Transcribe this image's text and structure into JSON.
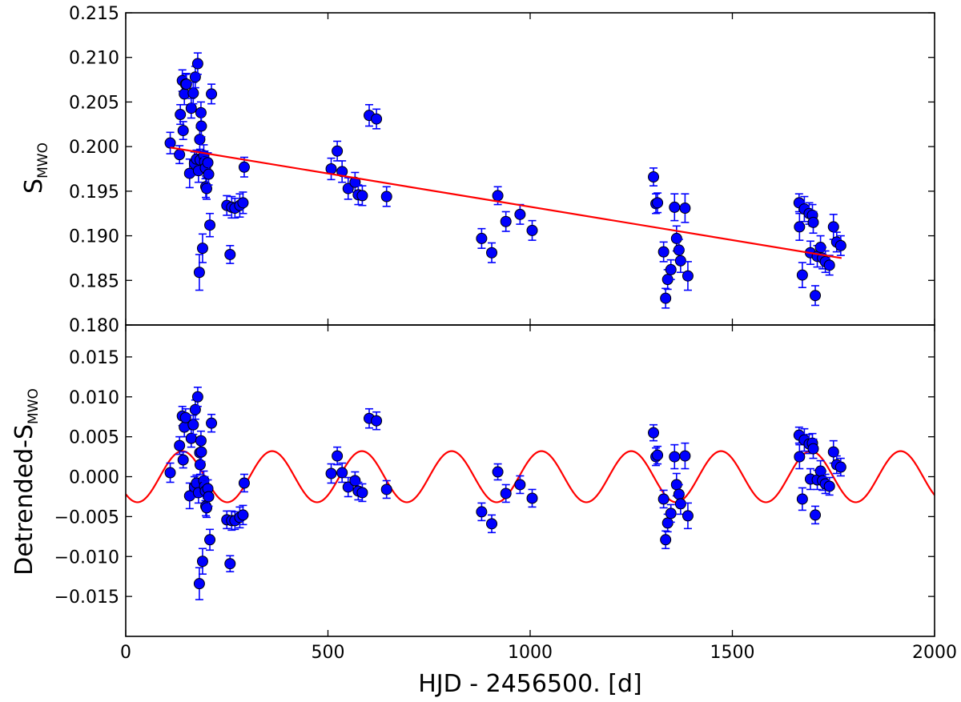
{
  "colors": {
    "points": "#0000ff",
    "model": "#ff0000",
    "errorbar": "#0000ff",
    "frame": "#000000",
    "background": "#ffffff"
  },
  "chart_data": [
    {
      "type": "scatter",
      "panel": "top",
      "ylabel_main": "S",
      "ylabel_sub": "MWO",
      "xlim": [
        0,
        2000
      ],
      "ylim": [
        0.18,
        0.215
      ],
      "yticks": [
        0.18,
        0.185,
        0.19,
        0.195,
        0.2,
        0.205,
        0.21,
        0.215
      ],
      "ytick_labels": [
        "0.180",
        "0.185",
        "0.190",
        "0.195",
        "0.200",
        "0.205",
        "0.210",
        "0.215"
      ],
      "series": [
        {
          "name": "S_MWO measurements",
          "kind": "points_with_errorbars",
          "points": [
            [
              110,
              0.2004,
              0.0012
            ],
            [
              133,
              0.1991,
              0.001
            ],
            [
              135,
              0.2036,
              0.0011
            ],
            [
              140,
              0.2074,
              0.0012
            ],
            [
              142,
              0.2018,
              0.001
            ],
            [
              145,
              0.2059,
              0.0012
            ],
            [
              148,
              0.207,
              0.0011
            ],
            [
              150,
              0.207,
              0.0012
            ],
            [
              158,
              0.197,
              0.0016
            ],
            [
              162,
              0.2043,
              0.0011
            ],
            [
              167,
              0.206,
              0.0012
            ],
            [
              170,
              0.1981,
              0.0013
            ],
            [
              172,
              0.2078,
              0.0012
            ],
            [
              175,
              0.1986,
              0.001
            ],
            [
              178,
              0.2093,
              0.0012
            ],
            [
              180,
              0.1973,
              0.0013
            ],
            [
              182,
              0.1859,
              0.002
            ],
            [
              183,
              0.2008,
              0.0013
            ],
            [
              184,
              0.1985,
              0.0012
            ],
            [
              186,
              0.2038,
              0.0012
            ],
            [
              187,
              0.2023,
              0.0012
            ],
            [
              190,
              0.1886,
              0.0016
            ],
            [
              193,
              0.199,
              0.0012
            ],
            [
              195,
              0.1983,
              0.0012
            ],
            [
              197,
              0.1976,
              0.0012
            ],
            [
              198,
              0.1955,
              0.0012
            ],
            [
              200,
              0.1953,
              0.0012
            ],
            [
              203,
              0.1982,
              0.0011
            ],
            [
              205,
              0.1969,
              0.0012
            ],
            [
              208,
              0.1912,
              0.0013
            ],
            [
              212,
              0.2059,
              0.0011
            ],
            [
              250,
              0.1934,
              0.0011
            ],
            [
              258,
              0.1879,
              0.001
            ],
            [
              262,
              0.1932,
              0.0012
            ],
            [
              270,
              0.1931,
              0.0011
            ],
            [
              282,
              0.1934,
              0.0013
            ],
            [
              290,
              0.1937,
              0.0012
            ],
            [
              293,
              0.1977,
              0.0011
            ],
            [
              508,
              0.1975,
              0.0012
            ],
            [
              523,
              0.1995,
              0.0011
            ],
            [
              535,
              0.1972,
              0.0012
            ],
            [
              550,
              0.1953,
              0.0012
            ],
            [
              567,
              0.196,
              0.0011
            ],
            [
              575,
              0.1946,
              0.0011
            ],
            [
              585,
              0.1945,
              0.0011
            ],
            [
              602,
              0.2035,
              0.0012
            ],
            [
              620,
              0.2031,
              0.0011
            ],
            [
              645,
              0.1944,
              0.0011
            ],
            [
              880,
              0.1897,
              0.0011
            ],
            [
              905,
              0.1881,
              0.0011
            ],
            [
              920,
              0.1945,
              0.001
            ],
            [
              940,
              0.1916,
              0.0011
            ],
            [
              975,
              0.1924,
              0.0011
            ],
            [
              1005,
              0.1906,
              0.0011
            ],
            [
              1305,
              0.1966,
              0.001
            ],
            [
              1311,
              0.1936,
              0.0011
            ],
            [
              1315,
              0.1937,
              0.0011
            ],
            [
              1330,
              0.1882,
              0.0011
            ],
            [
              1335,
              0.183,
              0.0011
            ],
            [
              1340,
              0.1851,
              0.0011
            ],
            [
              1348,
              0.1862,
              0.0011
            ],
            [
              1357,
              0.1932,
              0.0015
            ],
            [
              1362,
              0.1897,
              0.0014
            ],
            [
              1368,
              0.1884,
              0.0012
            ],
            [
              1372,
              0.1872,
              0.0013
            ],
            [
              1383,
              0.1931,
              0.0016
            ],
            [
              1390,
              0.1855,
              0.0016
            ],
            [
              1665,
              0.1937,
              0.001
            ],
            [
              1666,
              0.191,
              0.0015
            ],
            [
              1673,
              0.1856,
              0.0014
            ],
            [
              1678,
              0.193,
              0.0014
            ],
            [
              1690,
              0.1925,
              0.0012
            ],
            [
              1693,
              0.1881,
              0.0013
            ],
            [
              1698,
              0.1923,
              0.0012
            ],
            [
              1700,
              0.1915,
              0.0012
            ],
            [
              1705,
              0.1833,
              0.0011
            ],
            [
              1710,
              0.1877,
              0.0012
            ],
            [
              1718,
              0.1887,
              0.0013
            ],
            [
              1723,
              0.1875,
              0.0012
            ],
            [
              1730,
              0.1871,
              0.0012
            ],
            [
              1740,
              0.1867,
              0.0011
            ],
            [
              1750,
              0.191,
              0.0014
            ],
            [
              1758,
              0.1893,
              0.0011
            ],
            [
              1768,
              0.1889,
              0.0011
            ]
          ]
        },
        {
          "name": "linear trend",
          "kind": "line",
          "x": [
            110,
            1770
          ],
          "y": [
            0.1999,
            0.1875
          ]
        }
      ]
    },
    {
      "type": "scatter",
      "panel": "bottom",
      "ylabel_main": "Detrended-S",
      "ylabel_sub": "MWO",
      "xlabel": "HJD - 2456500. [d]",
      "xlim": [
        0,
        2000
      ],
      "ylim": [
        -0.02,
        0.019
      ],
      "xticks": [
        0,
        500,
        1000,
        1500,
        2000
      ],
      "xtick_labels": [
        "0",
        "500",
        "1000",
        "1500",
        "2000"
      ],
      "yticks": [
        -0.015,
        -0.01,
        -0.005,
        0.0,
        0.005,
        0.01,
        0.015
      ],
      "ytick_labels": [
        "−0.015",
        "−0.010",
        "−0.005",
        "0.000",
        "0.005",
        "0.010",
        "0.015"
      ],
      "series": [
        {
          "name": "detrended S_MWO",
          "kind": "points_with_errorbars",
          "points": [
            [
              110,
              0.0005,
              0.0012
            ],
            [
              133,
              0.0039,
              0.0011
            ],
            [
              140,
              0.0076,
              0.0012
            ],
            [
              142,
              0.0021,
              0.001
            ],
            [
              145,
              0.0062,
              0.0012
            ],
            [
              148,
              0.0074,
              0.0011
            ],
            [
              158,
              -0.0024,
              0.0016
            ],
            [
              162,
              0.0048,
              0.0011
            ],
            [
              167,
              0.0065,
              0.0012
            ],
            [
              170,
              -0.0013,
              0.0013
            ],
            [
              172,
              0.0084,
              0.0012
            ],
            [
              175,
              -0.0008,
              0.001
            ],
            [
              178,
              0.01,
              0.0012
            ],
            [
              180,
              -0.002,
              0.0013
            ],
            [
              182,
              -0.0134,
              0.002
            ],
            [
              183,
              0.003,
              0.0013
            ],
            [
              184,
              0.0015,
              0.0012
            ],
            [
              186,
              0.0045,
              0.0012
            ],
            [
              187,
              0.0031,
              0.0012
            ],
            [
              190,
              -0.0106,
              0.0016
            ],
            [
              193,
              -0.0005,
              0.0012
            ],
            [
              195,
              -0.0012,
              0.0012
            ],
            [
              197,
              -0.0018,
              0.0012
            ],
            [
              198,
              -0.0037,
              0.0012
            ],
            [
              200,
              -0.0039,
              0.0012
            ],
            [
              203,
              -0.0015,
              0.0011
            ],
            [
              205,
              -0.0025,
              0.0012
            ],
            [
              208,
              -0.0079,
              0.0013
            ],
            [
              212,
              0.0067,
              0.0011
            ],
            [
              250,
              -0.0054,
              0.0011
            ],
            [
              258,
              -0.0109,
              0.001
            ],
            [
              262,
              -0.0055,
              0.0012
            ],
            [
              270,
              -0.0055,
              0.0011
            ],
            [
              282,
              -0.0051,
              0.0013
            ],
            [
              290,
              -0.0048,
              0.0012
            ],
            [
              293,
              -0.0008,
              0.0011
            ],
            [
              508,
              0.0004,
              0.0012
            ],
            [
              523,
              0.0026,
              0.0011
            ],
            [
              535,
              0.0005,
              0.0012
            ],
            [
              550,
              -0.0013,
              0.0012
            ],
            [
              567,
              -0.0005,
              0.0011
            ],
            [
              575,
              -0.0018,
              0.0011
            ],
            [
              585,
              -0.002,
              0.0011
            ],
            [
              602,
              0.0073,
              0.0012
            ],
            [
              620,
              0.007,
              0.0011
            ],
            [
              645,
              -0.0016,
              0.0011
            ],
            [
              880,
              -0.0044,
              0.0011
            ],
            [
              905,
              -0.0059,
              0.0011
            ],
            [
              920,
              0.0006,
              0.001
            ],
            [
              940,
              -0.0021,
              0.0011
            ],
            [
              975,
              -0.001,
              0.0011
            ],
            [
              1005,
              -0.0027,
              0.0011
            ],
            [
              1305,
              0.0055,
              0.001
            ],
            [
              1311,
              0.0025,
              0.0011
            ],
            [
              1315,
              0.0027,
              0.0011
            ],
            [
              1330,
              -0.0028,
              0.0011
            ],
            [
              1335,
              -0.0079,
              0.0011
            ],
            [
              1340,
              -0.0058,
              0.0011
            ],
            [
              1348,
              -0.0046,
              0.0011
            ],
            [
              1357,
              0.0025,
              0.0015
            ],
            [
              1362,
              -0.001,
              0.0014
            ],
            [
              1368,
              -0.0022,
              0.0012
            ],
            [
              1372,
              -0.0034,
              0.0013
            ],
            [
              1383,
              0.0026,
              0.0016
            ],
            [
              1390,
              -0.0049,
              0.0016
            ],
            [
              1665,
              0.0052,
              0.001
            ],
            [
              1666,
              0.0025,
              0.0015
            ],
            [
              1673,
              -0.0028,
              0.0014
            ],
            [
              1678,
              0.0046,
              0.0014
            ],
            [
              1690,
              0.0041,
              0.0012
            ],
            [
              1693,
              -0.0003,
              0.0013
            ],
            [
              1698,
              0.0042,
              0.0012
            ],
            [
              1700,
              0.0035,
              0.0012
            ],
            [
              1705,
              -0.0048,
              0.0011
            ],
            [
              1710,
              -0.0004,
              0.0012
            ],
            [
              1718,
              0.0007,
              0.0013
            ],
            [
              1723,
              -0.0005,
              0.0012
            ],
            [
              1730,
              -0.0009,
              0.0012
            ],
            [
              1740,
              -0.0012,
              0.0011
            ],
            [
              1750,
              0.0031,
              0.0014
            ],
            [
              1758,
              0.0015,
              0.0011
            ],
            [
              1768,
              0.0012,
              0.0011
            ]
          ]
        },
        {
          "name": "sinusoidal fit",
          "kind": "sine",
          "amplitude": 0.0032,
          "period": 222,
          "peak_x": 140,
          "x_range": [
            0,
            2000
          ]
        }
      ]
    }
  ]
}
